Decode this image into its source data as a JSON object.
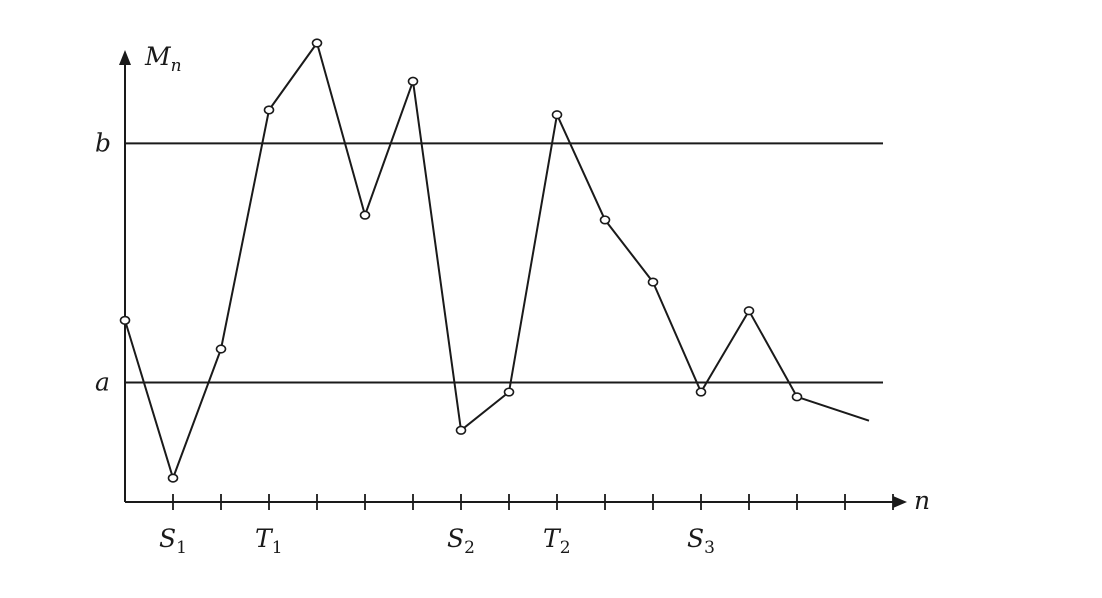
{
  "chart_data": {
    "type": "line",
    "y_axis_label": "M",
    "y_axis_label_sub": "n",
    "x_axis_label": "n",
    "levels": [
      {
        "name": "b",
        "value": 0.75
      },
      {
        "name": "a",
        "value": 0.25
      }
    ],
    "ylim": [
      0,
      1.05
    ],
    "x_ticks": 16,
    "tick_labels": [
      {
        "index": 1,
        "main": "S",
        "sub": "1"
      },
      {
        "index": 3,
        "main": "T",
        "sub": "1"
      },
      {
        "index": 7,
        "main": "S",
        "sub": "2"
      },
      {
        "index": 9,
        "main": "T",
        "sub": "2"
      },
      {
        "index": 12,
        "main": "S",
        "sub": "3"
      }
    ],
    "points": [
      {
        "x": 0,
        "y": 0.38
      },
      {
        "x": 1,
        "y": 0.05
      },
      {
        "x": 2,
        "y": 0.32
      },
      {
        "x": 3,
        "y": 0.82
      },
      {
        "x": 4,
        "y": 0.96
      },
      {
        "x": 5,
        "y": 0.6
      },
      {
        "x": 6,
        "y": 0.88
      },
      {
        "x": 7,
        "y": 0.15
      },
      {
        "x": 8,
        "y": 0.23
      },
      {
        "x": 9,
        "y": 0.81
      },
      {
        "x": 10,
        "y": 0.59
      },
      {
        "x": 11,
        "y": 0.46
      },
      {
        "x": 12,
        "y": 0.23
      },
      {
        "x": 13,
        "y": 0.4
      },
      {
        "x": 14,
        "y": 0.22
      }
    ],
    "tail_end": {
      "x": 15.5,
      "y": 0.17
    }
  }
}
